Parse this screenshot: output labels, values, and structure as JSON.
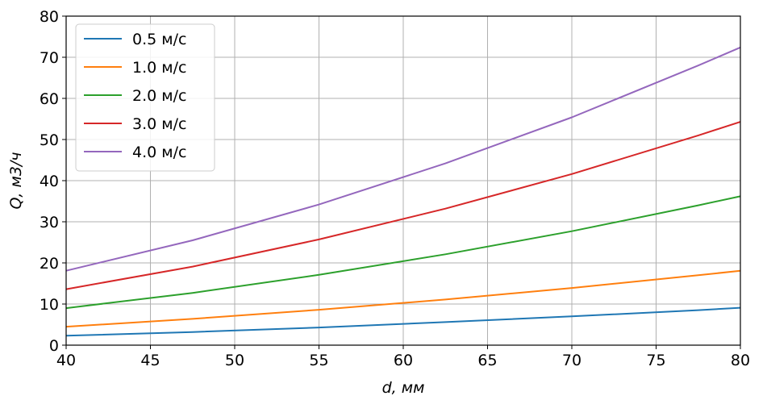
{
  "chart_data": {
    "type": "line",
    "title": "",
    "xlabel": "d, мм",
    "ylabel": "Q, м3/ч",
    "xlim": [
      40,
      80
    ],
    "ylim": [
      0,
      80
    ],
    "xticks": [
      "40",
      "45",
      "50",
      "55",
      "60",
      "65",
      "70",
      "75",
      "80"
    ],
    "yticks": [
      "0",
      "10",
      "20",
      "30",
      "40",
      "50",
      "60",
      "70",
      "80"
    ],
    "grid": true,
    "legend_position": "top-left",
    "x": [
      40,
      47.5,
      55,
      62.5,
      70,
      77.5,
      80
    ],
    "series": [
      {
        "name": "0.5 м/с",
        "color": "#1f77b4",
        "values": [
          2.3,
          3.2,
          4.3,
          5.6,
          7.0,
          8.5,
          9.1
        ]
      },
      {
        "name": "1.0 м/с",
        "color": "#ff7f0e",
        "values": [
          4.5,
          6.4,
          8.6,
          11.1,
          13.9,
          17.0,
          18.1
        ]
      },
      {
        "name": "2.0 м/с",
        "color": "#2ca02c",
        "values": [
          9.0,
          12.7,
          17.1,
          22.1,
          27.7,
          34.0,
          36.2
        ]
      },
      {
        "name": "3.0 м/с",
        "color": "#d62728",
        "values": [
          13.6,
          19.1,
          25.7,
          33.2,
          41.6,
          51.0,
          54.3
        ]
      },
      {
        "name": "4.0 м/с",
        "color": "#9467bd",
        "values": [
          18.1,
          25.5,
          34.2,
          44.2,
          55.4,
          68.0,
          72.4
        ]
      }
    ]
  }
}
